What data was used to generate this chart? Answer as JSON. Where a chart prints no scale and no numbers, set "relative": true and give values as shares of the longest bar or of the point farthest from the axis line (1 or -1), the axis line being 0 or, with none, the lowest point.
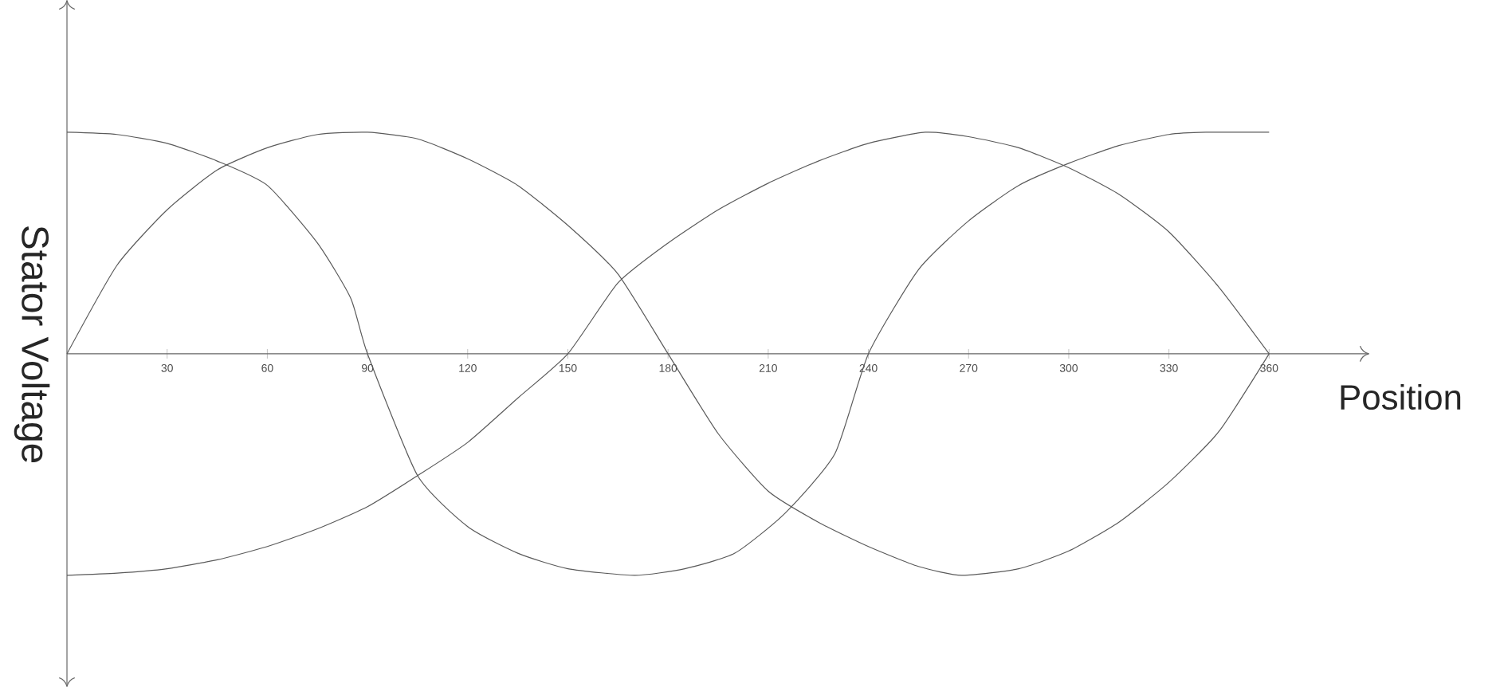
{
  "chart_data": {
    "type": "line",
    "relative": true,
    "tick_labels": "x",
    "xlabel": "Position",
    "ylabel": "Stator Voltage",
    "xlim": [
      0,
      390
    ],
    "xticks": [
      30,
      60,
      90,
      120,
      150,
      180,
      210,
      240,
      270,
      300,
      330,
      360
    ],
    "series": [
      {
        "color": "#5a5a5a",
        "x": [
          0,
          15,
          30,
          45,
          60,
          75,
          85,
          90,
          105,
          120,
          135,
          150,
          170,
          185,
          200,
          215,
          230,
          240,
          255,
          270,
          285,
          300,
          315,
          330,
          341,
          360
        ],
        "values": [
          1,
          0.99,
          0.95,
          0.87,
          0.76,
          0.5,
          0.25,
          0,
          -0.55,
          -0.78,
          -0.9,
          -0.97,
          -1,
          -0.97,
          -0.9,
          -0.72,
          -0.45,
          0,
          0.38,
          0.6,
          0.76,
          0.86,
          0.94,
          0.99,
          1,
          1
        ]
      },
      {
        "color": "#5a5a5a",
        "x": [
          0,
          15,
          30,
          45,
          60,
          75,
          90,
          105,
          120,
          135,
          150,
          165,
          180,
          195,
          210,
          225,
          240,
          255,
          268,
          285,
          300,
          315,
          330,
          345,
          360
        ],
        "values": [
          0,
          0.4,
          0.65,
          0.83,
          0.93,
          0.99,
          1,
          0.97,
          0.88,
          0.76,
          0.58,
          0.36,
          0,
          -0.36,
          -0.62,
          -0.76,
          -0.87,
          -0.96,
          -1,
          -0.97,
          -0.89,
          -0.76,
          -0.58,
          -0.35,
          0
        ]
      },
      {
        "color": "#5a5a5a",
        "x": [
          0,
          15,
          30,
          45,
          60,
          75,
          90,
          105,
          120,
          135,
          150,
          165,
          180,
          195,
          210,
          225,
          240,
          257,
          270,
          285,
          300,
          315,
          330,
          345,
          360
        ],
        "values": [
          -1,
          -0.99,
          -0.97,
          -0.93,
          -0.87,
          -0.79,
          -0.69,
          -0.55,
          -0.4,
          -0.2,
          0,
          0.32,
          0.5,
          0.65,
          0.77,
          0.87,
          0.95,
          1,
          0.98,
          0.93,
          0.84,
          0.72,
          0.55,
          0.3,
          0
        ]
      }
    ]
  }
}
